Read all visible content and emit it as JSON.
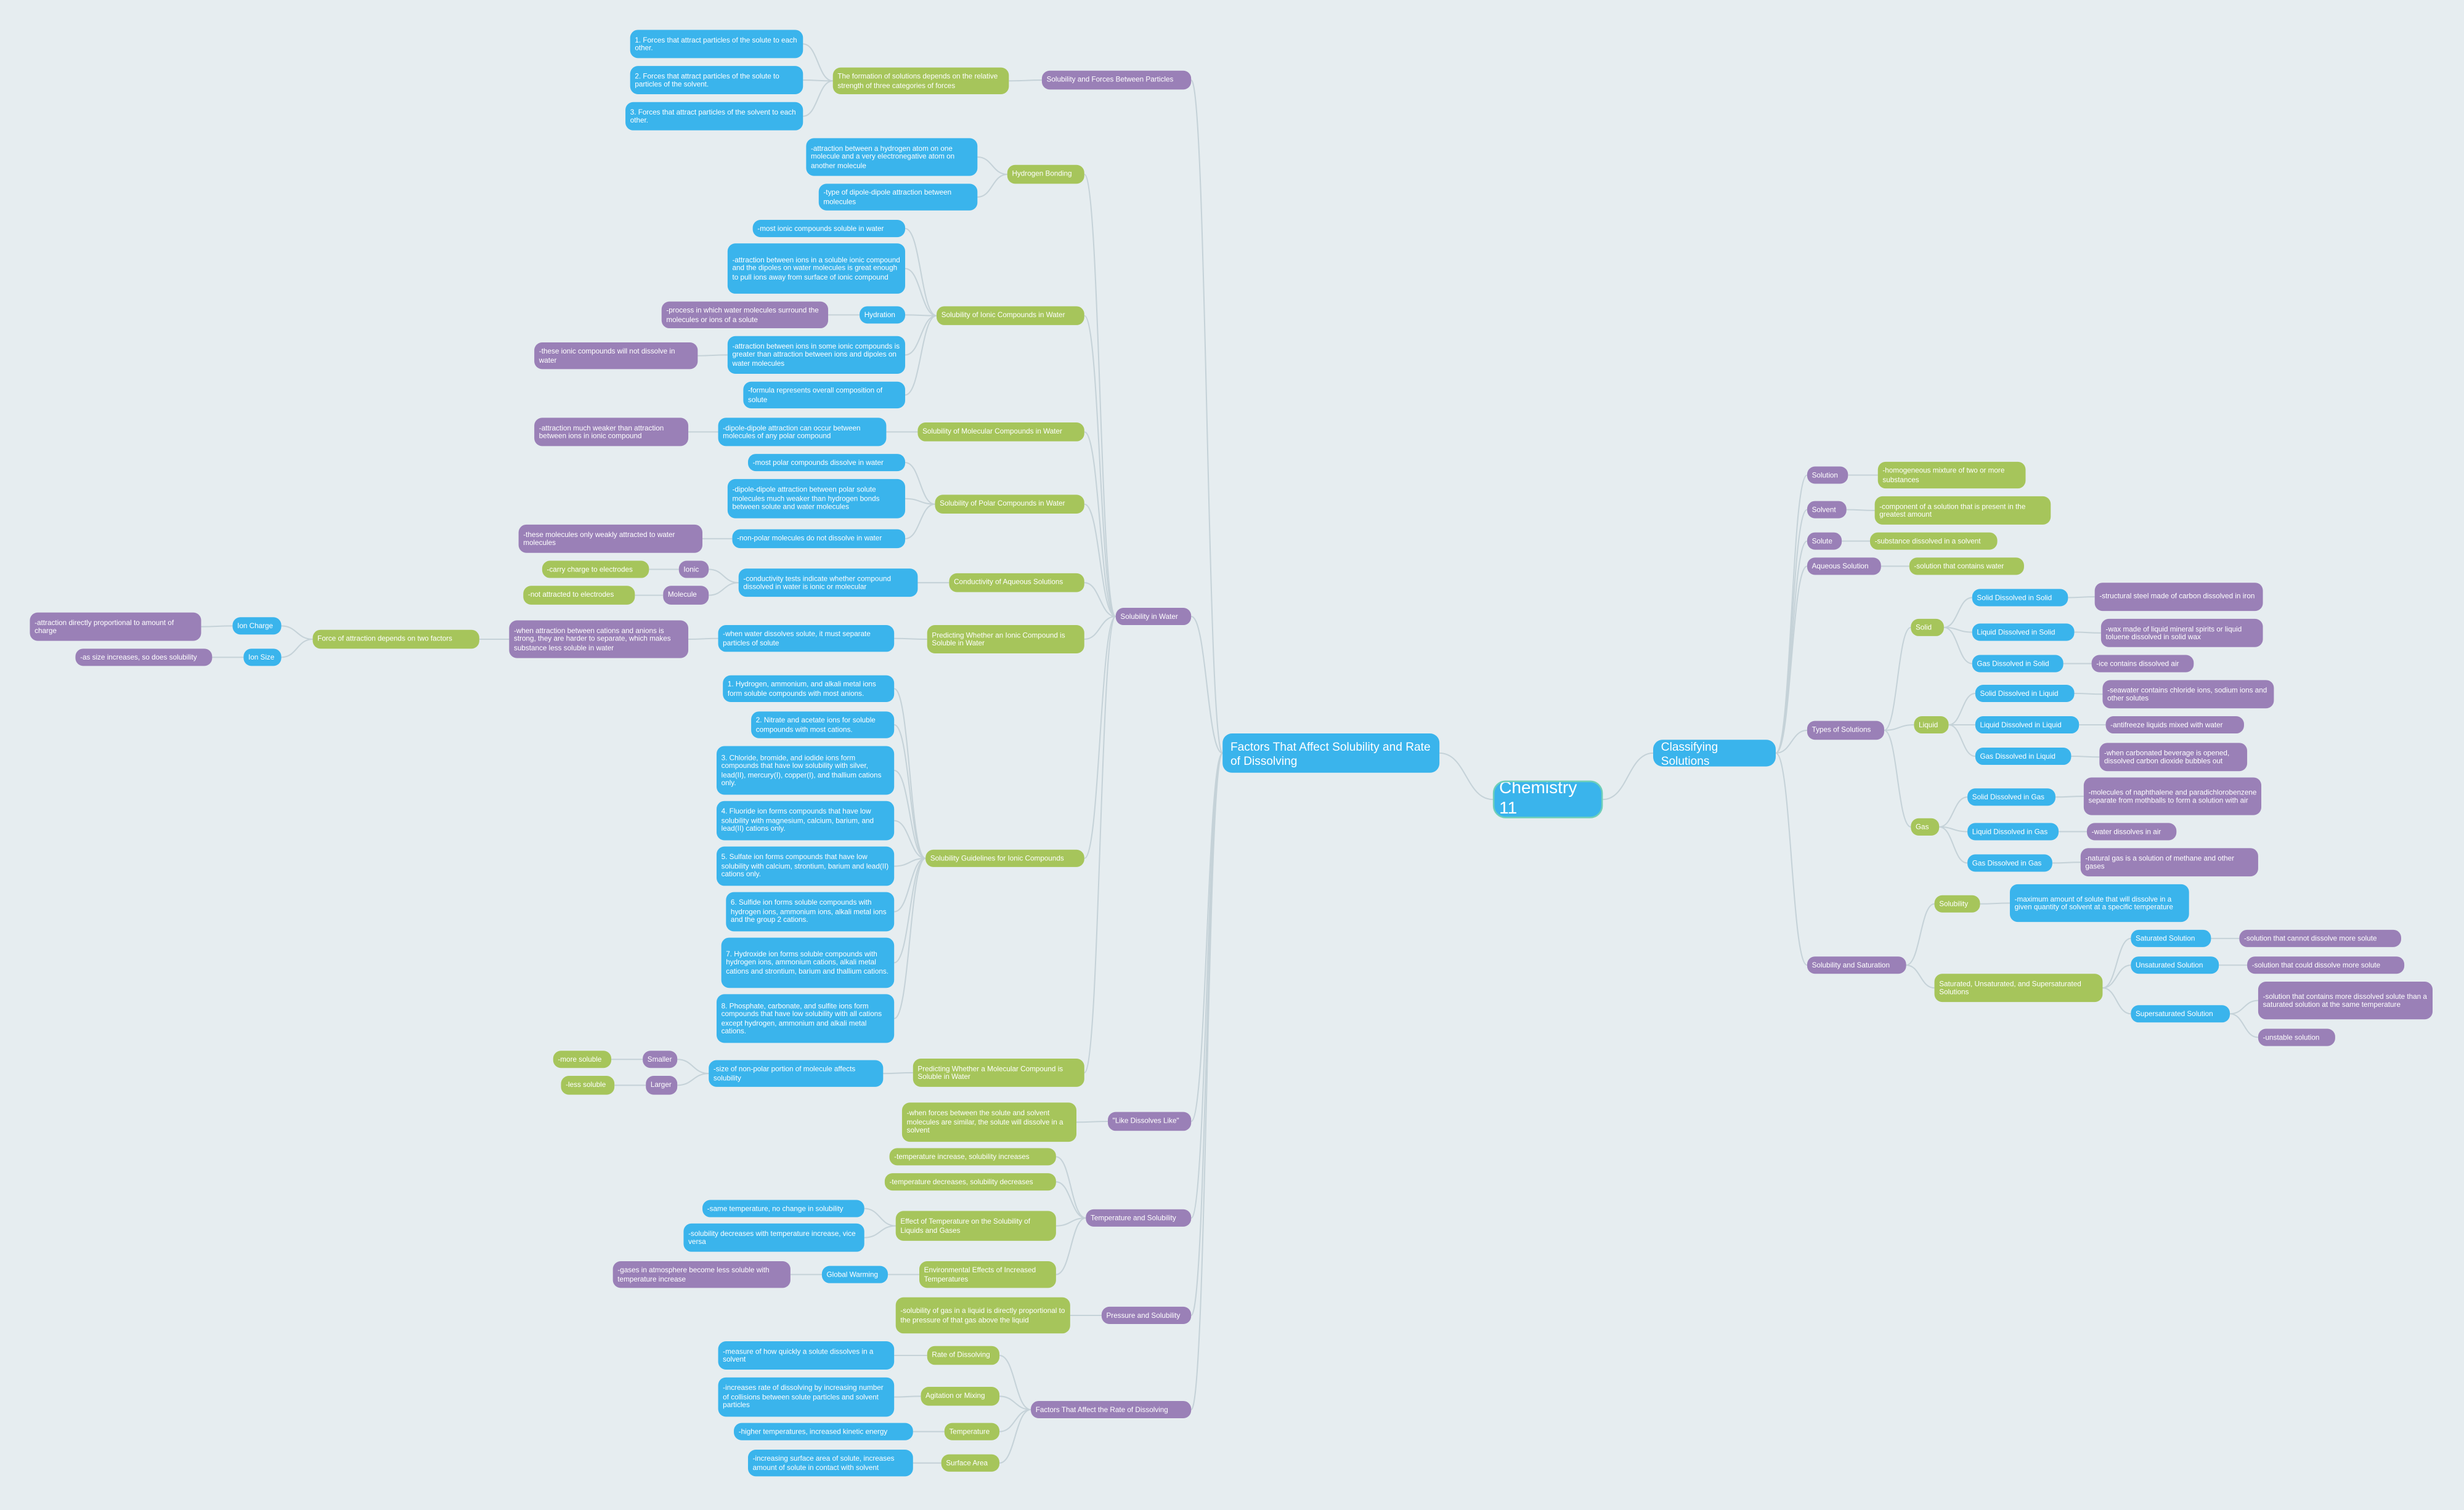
{
  "root": {
    "label": "Chemistry 11",
    "children": [
      {
        "label": "Factors That Affect Solubility and Rate of Dissolving",
        "children": [
          {
            "label": "Solubility and Forces Between Particles",
            "children": [
              {
                "label": "The formation of solutions depends on the relative strength of three categories of forces",
                "children": [
                  {
                    "label": "1. Forces that attract particles of the solute to each other."
                  },
                  {
                    "label": "2. Forces that attract particles of the solute to particles of the solvent."
                  },
                  {
                    "label": "3. Forces that attract particles of the solvent to each other."
                  }
                ]
              }
            ]
          },
          {
            "label": "Solubility in Water",
            "children": [
              {
                "label": "Hydrogen Bonding",
                "children": [
                  {
                    "label": "-attraction between a hydrogen atom on one molecule and a very electronegative atom on another molecule"
                  },
                  {
                    "label": "-type of dipole-dipole attraction between molecules"
                  }
                ]
              },
              {
                "label": "Solubility of Ionic Compounds in Water",
                "children": [
                  {
                    "label": "-most ionic compounds soluble in water"
                  },
                  {
                    "label": "-attraction between ions in a soluble ionic compound and the dipoles on water molecules is great enough to pull ions away from surface of ionic compound"
                  },
                  {
                    "label": "Hydration",
                    "children": [
                      {
                        "label": "-process in which water molecules surround the molecules or ions of a solute"
                      }
                    ]
                  },
                  {
                    "label": "-attraction between ions in some ionic compounds is greater than attraction between ions and dipoles on water molecules",
                    "children": [
                      {
                        "label": "-these ionic compounds will not dissolve in water"
                      }
                    ]
                  },
                  {
                    "label": "-formula represents overall composition of solute"
                  }
                ]
              },
              {
                "label": "Solubility of Molecular Compounds in Water",
                "children": [
                  {
                    "label": "-dipole-dipole attraction can occur between molecules of any polar compound",
                    "children": [
                      {
                        "label": "-attraction much weaker than attraction between ions in ionic compound"
                      }
                    ]
                  }
                ]
              },
              {
                "label": "Solubility of Polar Compounds in Water",
                "children": [
                  {
                    "label": "-most polar compounds dissolve in water"
                  },
                  {
                    "label": "-dipole-dipole attraction between polar solute molecules much weaker than hydrogen bonds between solute and water molecules"
                  },
                  {
                    "label": "-non-polar molecules do not dissolve in water",
                    "children": [
                      {
                        "label": "-these molecules only weakly attracted to water molecules"
                      }
                    ]
                  }
                ]
              },
              {
                "label": "Conductivity of Aqueous Solutions",
                "children": [
                  {
                    "label": "-conductivity tests indicate whether compound dissolved in water is ionic or molecular",
                    "children": [
                      {
                        "label": "Ionic",
                        "children": [
                          {
                            "label": "-carry charge to electrodes"
                          }
                        ]
                      },
                      {
                        "label": "Molecule",
                        "children": [
                          {
                            "label": "-not attracted to electrodes"
                          }
                        ]
                      }
                    ]
                  }
                ]
              },
              {
                "label": "Predicting Whether an Ionic Compound is Soluble in Water",
                "children": [
                  {
                    "label": "-when water dissolves solute, it must separate particles of solute",
                    "children": [
                      {
                        "label": "-when attraction between cations and anions is strong, they are harder to separate, which makes substance less soluble in water",
                        "children": [
                          {
                            "label": "Force of attraction depends on two factors",
                            "children": [
                              {
                                "label": "Ion Charge",
                                "children": [
                                  {
                                    "label": "-attraction directly proportional to amount of charge"
                                  }
                                ]
                              },
                              {
                                "label": "Ion Size",
                                "children": [
                                  {
                                    "label": "-as size increases, so does solubility"
                                  }
                                ]
                              }
                            ]
                          }
                        ]
                      }
                    ]
                  }
                ]
              },
              {
                "label": "Solubility Guidelines for Ionic Compounds",
                "children": [
                  {
                    "label": "1. Hydrogen, ammonium, and alkali metal ions form soluble compounds with most anions."
                  },
                  {
                    "label": "2. Nitrate and acetate ions for soluble compounds with most cations."
                  },
                  {
                    "label": "3. Chloride, bromide, and iodide ions form compounds that have low solubility with silver, lead(II), mercury(I), copper(I), and thallium cations only."
                  },
                  {
                    "label": "4. Fluoride ion forms compounds that have low solubility with magnesium, calcium, barium, and lead(II) cations only."
                  },
                  {
                    "label": "5. Sulfate ion forms compounds that have low solubility with calcium, strontium, barium and lead(II) cations only."
                  },
                  {
                    "label": "6. Sulfide ion forms soluble compounds with hydrogen ions, ammonium ions, alkali metal ions and the group 2 cations."
                  },
                  {
                    "label": "7. Hydroxide ion forms soluble compounds with hydrogen ions, ammonium cations, alkali metal cations and strontium, barium and thallium cations."
                  },
                  {
                    "label": "8. Phosphate, carbonate, and sulfite ions form compounds that have low solubility with all cations except hydrogen, ammonium and alkali metal cations."
                  }
                ]
              },
              {
                "label": "Predicting Whether a Molecular Compound is Soluble in Water",
                "children": [
                  {
                    "label": "-size of non-polar portion of molecule affects solubility",
                    "children": [
                      {
                        "label": "Smaller",
                        "children": [
                          {
                            "label": "-more soluble"
                          }
                        ]
                      },
                      {
                        "label": "Larger",
                        "children": [
                          {
                            "label": "-less soluble"
                          }
                        ]
                      }
                    ]
                  }
                ]
              }
            ]
          },
          {
            "label": "\"Like Dissolves Like\"",
            "children": [
              {
                "label": "-when forces between the solute and solvent molecules are similar, the solute will dissolve in a solvent"
              }
            ]
          },
          {
            "label": "Temperature and Solubility",
            "children": [
              {
                "label": "-temperature increase, solubility increases"
              },
              {
                "label": "-temperature decreases, solubility decreases"
              },
              {
                "label": "Effect of Temperature on the Solubility of Liquids and Gases",
                "children": [
                  {
                    "label": "-same temperature, no change in solubility"
                  },
                  {
                    "label": "-solubility decreases with temperature increase, vice versa"
                  }
                ]
              },
              {
                "label": "Environmental Effects of Increased Temperatures",
                "children": [
                  {
                    "label": "Global Warming",
                    "children": [
                      {
                        "label": "-gases in atmosphere become less soluble with temperature increase"
                      }
                    ]
                  }
                ]
              }
            ]
          },
          {
            "label": "Pressure and Solubility",
            "children": [
              {
                "label": "-solubility of gas in a liquid is directly proportional to the pressure of that gas above the liquid"
              }
            ]
          },
          {
            "label": "Factors That Affect the Rate of Dissolving",
            "children": [
              {
                "label": "Rate of Dissolving",
                "children": [
                  {
                    "label": "-measure of how quickly a solute dissolves in a solvent"
                  }
                ]
              },
              {
                "label": "Agitation or Mixing",
                "children": [
                  {
                    "label": "-increases rate of dissolving by increasing number of collisions between solute particles and solvent particles"
                  }
                ]
              },
              {
                "label": "Temperature",
                "children": [
                  {
                    "label": "-higher temperatures, increased kinetic energy"
                  }
                ]
              },
              {
                "label": "Surface Area",
                "children": [
                  {
                    "label": "-increasing surface area of solute, increases amount of solute in contact with solvent"
                  }
                ]
              }
            ]
          }
        ]
      },
      {
        "label": "Classifying Solutions",
        "children": [
          {
            "label": "Solution",
            "children": [
              {
                "label": "-homogeneous mixture of two or more substances"
              }
            ]
          },
          {
            "label": "Solvent",
            "children": [
              {
                "label": "-component of a solution that is present in the greatest amount"
              }
            ]
          },
          {
            "label": "Solute",
            "children": [
              {
                "label": "-substance dissolved in a solvent"
              }
            ]
          },
          {
            "label": "Aqueous Solution",
            "children": [
              {
                "label": "-solution that contains water"
              }
            ]
          },
          {
            "label": "Types of Solutions",
            "children": [
              {
                "label": "Solid",
                "children": [
                  {
                    "label": "Solid Dissolved in Solid",
                    "children": [
                      {
                        "label": "-structural steel made of carbon dissolved in iron"
                      }
                    ]
                  },
                  {
                    "label": "Liquid Dissolved in Solid",
                    "children": [
                      {
                        "label": "-wax made of liquid mineral spirits or liquid toluene dissolved in solid wax"
                      }
                    ]
                  },
                  {
                    "label": "Gas Dissolved in Solid",
                    "children": [
                      {
                        "label": "-ice contains dissolved air"
                      }
                    ]
                  }
                ]
              },
              {
                "label": "Liquid",
                "children": [
                  {
                    "label": "Solid Dissolved in Liquid",
                    "children": [
                      {
                        "label": "-seawater contains chloride ions, sodium ions and other solutes"
                      }
                    ]
                  },
                  {
                    "label": "Liquid Dissolved in Liquid",
                    "children": [
                      {
                        "label": "-antifreeze liquids mixed with water"
                      }
                    ]
                  },
                  {
                    "label": "Gas Dissolved in Liquid",
                    "children": [
                      {
                        "label": "-when carbonated beverage is opened, dissolved carbon dioxide bubbles out"
                      }
                    ]
                  }
                ]
              },
              {
                "label": "Gas",
                "children": [
                  {
                    "label": "Solid Dissolved in Gas",
                    "children": [
                      {
                        "label": "-molecules of naphthalene and paradichlorobenzene separate from mothballs to form a solution with air"
                      }
                    ]
                  },
                  {
                    "label": "Liquid Dissolved in Gas",
                    "children": [
                      {
                        "label": "-water dissolves in air"
                      }
                    ]
                  },
                  {
                    "label": "Gas Dissolved in Gas",
                    "children": [
                      {
                        "label": "-natural gas is a solution of methane and other gases"
                      }
                    ]
                  }
                ]
              }
            ]
          },
          {
            "label": "Solubility and Saturation",
            "children": [
              {
                "label": "Solubility",
                "children": [
                  {
                    "label": "-maximum amount of solute that will dissolve in a given quantity of solvent at a specific temperature"
                  }
                ]
              },
              {
                "label": "Saturated, Unsaturated, and Supersaturated Solutions",
                "children": [
                  {
                    "label": "Saturated Solution",
                    "children": [
                      {
                        "label": "-solution that cannot dissolve more solute"
                      }
                    ]
                  },
                  {
                    "label": "Unsaturated Solution",
                    "children": [
                      {
                        "label": "-solution that could dissolve more solute"
                      }
                    ]
                  },
                  {
                    "label": "Supersaturated Solution",
                    "children": [
                      {
                        "label": "-solution that contains more dissolved solute than a saturated solution at the same temperature"
                      },
                      {
                        "label": "-unstable solution"
                      }
                    ]
                  }
                ]
              }
            ]
          }
        ]
      }
    ]
  }
}
